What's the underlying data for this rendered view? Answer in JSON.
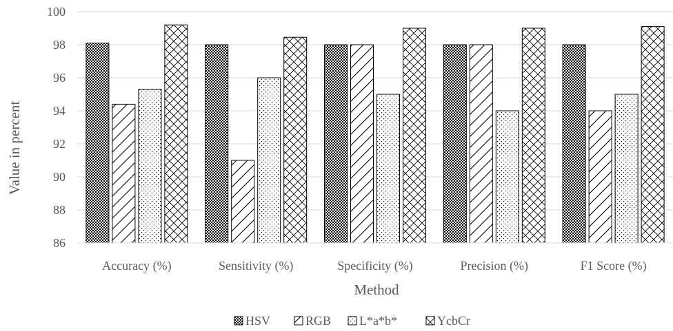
{
  "chart_data": {
    "type": "bar",
    "title": "",
    "xlabel": "Method",
    "ylabel": "Value in percent",
    "categories": [
      "Accuracy (%)",
      "Sensitivity (%)",
      "Specificity (%)",
      "Precision (%)",
      "F1 Score (%)"
    ],
    "ylim": [
      86,
      100
    ],
    "yticks": [
      "86",
      "88",
      "90",
      "92",
      "94",
      "96",
      "98",
      "100"
    ],
    "grid": true,
    "legend_position": "bottom",
    "series": [
      {
        "name": "HSV",
        "pattern": "checker",
        "values": [
          98.1,
          98.0,
          98.0,
          98.0,
          98.0
        ]
      },
      {
        "name": "RGB",
        "pattern": "diagonal",
        "values": [
          94.4,
          91.0,
          98.0,
          98.0,
          94.0
        ]
      },
      {
        "name": "L*a*b*",
        "pattern": "dots",
        "values": [
          95.3,
          96.0,
          95.0,
          94.0,
          95.0
        ]
      },
      {
        "name": "YcbCr",
        "pattern": "crosshatch",
        "values": [
          99.2,
          98.45,
          99.0,
          99.0,
          99.1
        ]
      }
    ]
  }
}
